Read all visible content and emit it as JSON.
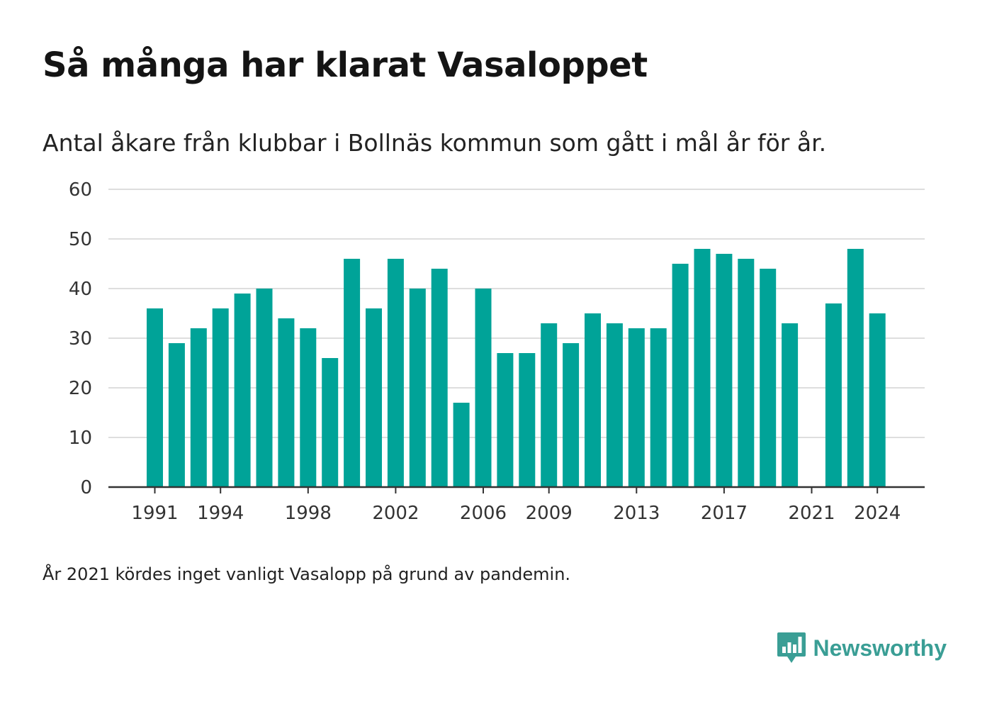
{
  "title": "Så många har klarat Vasaloppet",
  "subtitle": "Antal åkare från klubbar i Bollnäs kommun som gått i mål år för år.",
  "note": "År 2021 kördes inget vanligt Vasalopp på grund av pandemin.",
  "brand": {
    "name": "Newsworthy",
    "icon": "newsworthy-logo-icon"
  },
  "colors": {
    "bar": "#00a398",
    "grid": "#dedede",
    "axis": "#333333",
    "brand": "#3a9e95"
  },
  "chart_data": {
    "type": "bar",
    "categories": [
      1991,
      1992,
      1993,
      1994,
      1995,
      1996,
      1997,
      1998,
      1999,
      2000,
      2001,
      2002,
      2003,
      2004,
      2005,
      2006,
      2007,
      2008,
      2009,
      2010,
      2011,
      2012,
      2013,
      2014,
      2015,
      2016,
      2017,
      2018,
      2019,
      2020,
      2021,
      2022,
      2023,
      2024
    ],
    "values": [
      36,
      29,
      32,
      36,
      39,
      40,
      34,
      32,
      26,
      46,
      36,
      46,
      40,
      44,
      17,
      40,
      27,
      27,
      33,
      29,
      35,
      33,
      32,
      32,
      45,
      48,
      47,
      46,
      44,
      33,
      null,
      37,
      48,
      35
    ],
    "x_tick_labels": [
      "1991",
      "1994",
      "1998",
      "2002",
      "2006",
      "2009",
      "2013",
      "2017",
      "2021",
      "2024"
    ],
    "y_ticks": [
      0,
      10,
      20,
      30,
      40,
      50,
      60
    ],
    "ylim": [
      0,
      60
    ],
    "grid": true,
    "xlabel": "",
    "ylabel": ""
  }
}
